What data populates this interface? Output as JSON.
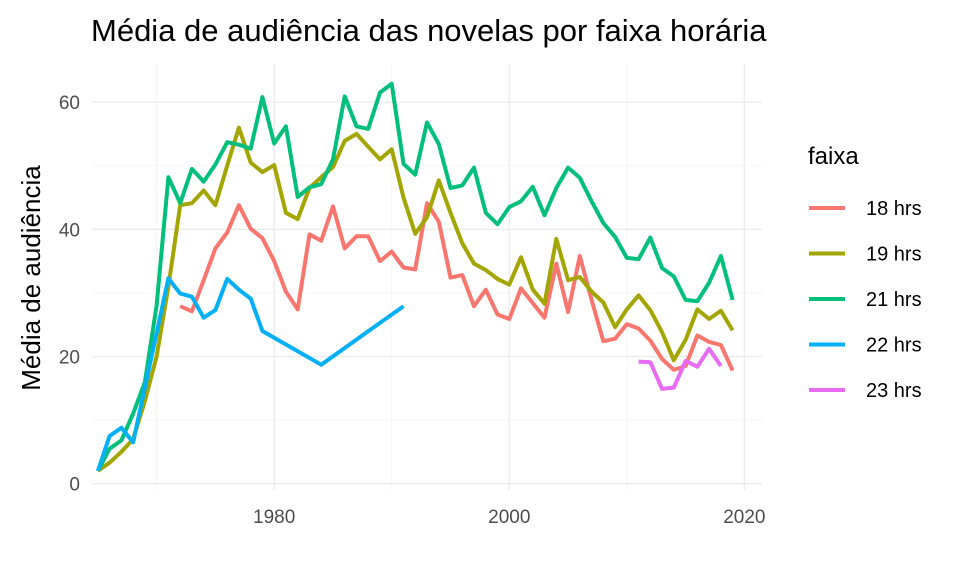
{
  "chart_data": {
    "type": "line",
    "title": "Média de audiência das novelas por faixa horária",
    "xlabel": "",
    "ylabel": "Média de audiência",
    "xlim": [
      1964.5,
      2021.5
    ],
    "ylim": [
      -1,
      66
    ],
    "x_ticks": [
      1980,
      2000,
      2020
    ],
    "y_ticks": [
      0,
      20,
      40,
      60
    ],
    "grid": true,
    "legend_position": "right",
    "legend_title": "faixa",
    "series": [
      {
        "name": "18 hrs",
        "color": "#F8766D",
        "points": [
          [
            1972,
            27.9
          ],
          [
            1973,
            27.1
          ],
          [
            1974,
            32
          ],
          [
            1975,
            37
          ],
          [
            1976,
            39.5
          ],
          [
            1977,
            43.8
          ],
          [
            1978,
            40.1
          ],
          [
            1979,
            38.6
          ],
          [
            1980,
            35
          ],
          [
            1981,
            30.2
          ],
          [
            1982,
            27.4
          ],
          [
            1983,
            39.2
          ],
          [
            1984,
            38.2
          ],
          [
            1985,
            43.6
          ],
          [
            1986,
            37
          ],
          [
            1987,
            38.9
          ],
          [
            1988,
            38.9
          ],
          [
            1989,
            35
          ],
          [
            1990,
            36.5
          ],
          [
            1991,
            34
          ],
          [
            1992,
            33.7
          ],
          [
            1993,
            44.1
          ],
          [
            1994,
            41.2
          ],
          [
            1995,
            32.4
          ],
          [
            1996,
            32.8
          ],
          [
            1997,
            27.9
          ],
          [
            1998,
            30.5
          ],
          [
            1999,
            26.6
          ],
          [
            2000,
            25.9
          ],
          [
            2001,
            30.7
          ],
          [
            2002,
            28.4
          ],
          [
            2003,
            26.1
          ],
          [
            2004,
            34.6
          ],
          [
            2005,
            27
          ],
          [
            2006,
            35.8
          ],
          [
            2007,
            28.9
          ],
          [
            2008,
            22.4
          ],
          [
            2009,
            22.8
          ],
          [
            2010,
            25.1
          ],
          [
            2011,
            24.4
          ],
          [
            2012,
            22.5
          ],
          [
            2013,
            19.6
          ],
          [
            2014,
            17.9
          ],
          [
            2015,
            18.5
          ],
          [
            2016,
            23.3
          ],
          [
            2017,
            22.3
          ],
          [
            2018,
            21.8
          ],
          [
            2019,
            17.8
          ]
        ]
      },
      {
        "name": "19 hrs",
        "color": "#A3A500",
        "points": [
          [
            1965,
            2
          ],
          [
            1966,
            3.3
          ],
          [
            1967,
            5
          ],
          [
            1968,
            7
          ],
          [
            1969,
            13
          ],
          [
            1970,
            20
          ],
          [
            1971,
            31
          ],
          [
            1972,
            43.8
          ],
          [
            1973,
            44.1
          ],
          [
            1974,
            46.1
          ],
          [
            1975,
            43.8
          ],
          [
            1976,
            50
          ],
          [
            1977,
            56
          ],
          [
            1978,
            50.5
          ],
          [
            1979,
            49
          ],
          [
            1980,
            50.1
          ],
          [
            1981,
            42.6
          ],
          [
            1982,
            41.6
          ],
          [
            1983,
            46.5
          ],
          [
            1984,
            48.2
          ],
          [
            1985,
            49.8
          ],
          [
            1986,
            53.9
          ],
          [
            1987,
            55
          ],
          [
            1988,
            53
          ],
          [
            1989,
            51
          ],
          [
            1990,
            52.6
          ],
          [
            1991,
            45
          ],
          [
            1992,
            39.3
          ],
          [
            1993,
            41.9
          ],
          [
            1994,
            47.7
          ],
          [
            1995,
            42.6
          ],
          [
            1996,
            37.8
          ],
          [
            1997,
            34.6
          ],
          [
            1998,
            33.6
          ],
          [
            1999,
            32.2
          ],
          [
            2000,
            31.3
          ],
          [
            2001,
            35.6
          ],
          [
            2002,
            30.5
          ],
          [
            2003,
            28.3
          ],
          [
            2004,
            38.5
          ],
          [
            2005,
            32
          ],
          [
            2006,
            32.5
          ],
          [
            2007,
            30.2
          ],
          [
            2008,
            28.5
          ],
          [
            2009,
            24.6
          ],
          [
            2010,
            27.4
          ],
          [
            2011,
            29.6
          ],
          [
            2012,
            27.3
          ],
          [
            2013,
            23.8
          ],
          [
            2014,
            19.4
          ],
          [
            2015,
            22.6
          ],
          [
            2016,
            27.4
          ],
          [
            2017,
            25.9
          ],
          [
            2018,
            27.2
          ],
          [
            2019,
            24.1
          ]
        ]
      },
      {
        "name": "21 hrs",
        "color": "#00BF7D",
        "points": [
          [
            1965,
            2
          ],
          [
            1966,
            5.5
          ],
          [
            1967,
            6.8
          ],
          [
            1968,
            11
          ],
          [
            1969,
            16
          ],
          [
            1970,
            28
          ],
          [
            1971,
            48.2
          ],
          [
            1972,
            44.1
          ],
          [
            1973,
            49.5
          ],
          [
            1974,
            47.5
          ],
          [
            1975,
            50.2
          ],
          [
            1976,
            53.7
          ],
          [
            1977,
            53.3
          ],
          [
            1978,
            52.7
          ],
          [
            1979,
            60.8
          ],
          [
            1980,
            53.5
          ],
          [
            1981,
            56.2
          ],
          [
            1982,
            45.1
          ],
          [
            1983,
            46.6
          ],
          [
            1984,
            47.1
          ],
          [
            1985,
            51
          ],
          [
            1986,
            60.9
          ],
          [
            1987,
            56.2
          ],
          [
            1988,
            55.8
          ],
          [
            1989,
            61.5
          ],
          [
            1990,
            62.9
          ],
          [
            1991,
            50.3
          ],
          [
            1992,
            48.6
          ],
          [
            1993,
            56.8
          ],
          [
            1994,
            53.4
          ],
          [
            1995,
            46.5
          ],
          [
            1996,
            46.9
          ],
          [
            1997,
            49.7
          ],
          [
            1998,
            42.6
          ],
          [
            1999,
            40.8
          ],
          [
            2000,
            43.5
          ],
          [
            2001,
            44.4
          ],
          [
            2002,
            46.7
          ],
          [
            2003,
            42.2
          ],
          [
            2004,
            46.5
          ],
          [
            2005,
            49.7
          ],
          [
            2006,
            48.1
          ],
          [
            2007,
            44.4
          ],
          [
            2008,
            41
          ],
          [
            2009,
            38.8
          ],
          [
            2010,
            35.5
          ],
          [
            2011,
            35.3
          ],
          [
            2012,
            38.7
          ],
          [
            2013,
            33.9
          ],
          [
            2014,
            32.6
          ],
          [
            2015,
            28.9
          ],
          [
            2016,
            28.7
          ],
          [
            2017,
            31.6
          ],
          [
            2018,
            35.8
          ],
          [
            2019,
            28.9
          ]
        ]
      },
      {
        "name": "22 hrs",
        "color": "#00B0F6",
        "points": [
          [
            1965,
            2
          ],
          [
            1966,
            7.5
          ],
          [
            1967,
            8.8
          ],
          [
            1968,
            6.5
          ],
          [
            1971,
            32.3
          ],
          [
            1972,
            29.9
          ],
          [
            1973,
            29.4
          ],
          [
            1974,
            26.1
          ],
          [
            1975,
            27.3
          ],
          [
            1976,
            32.2
          ],
          [
            1977,
            30.5
          ],
          [
            1978,
            29.1
          ],
          [
            1979,
            24
          ],
          [
            1984,
            18.7
          ],
          [
            1991,
            27.9
          ]
        ]
      },
      {
        "name": "23 hrs",
        "color": "#E76BF3",
        "points": [
          [
            2011,
            19.2
          ],
          [
            2012,
            19.1
          ],
          [
            2013,
            14.9
          ],
          [
            2014,
            15.1
          ],
          [
            2015,
            19.3
          ],
          [
            2016,
            18.4
          ],
          [
            2017,
            21.2
          ],
          [
            2018,
            18.5
          ]
        ]
      }
    ]
  }
}
